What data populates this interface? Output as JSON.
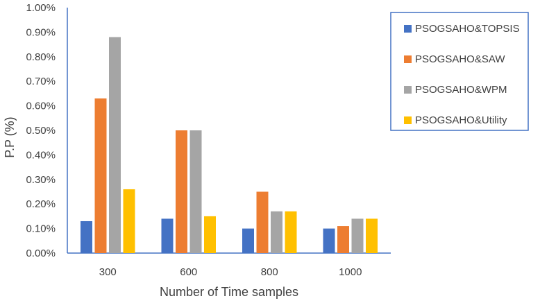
{
  "chart_data": {
    "type": "bar",
    "title": "",
    "xlabel": "Number of Time samples",
    "ylabel": "P.P (%)",
    "categories": [
      "300",
      "600",
      "800",
      "1000"
    ],
    "ylim": [
      0,
      1.0
    ],
    "yticks": [
      "0.00%",
      "0.10%",
      "0.20%",
      "0.30%",
      "0.40%",
      "0.50%",
      "0.60%",
      "0.70%",
      "0.80%",
      "0.90%",
      "1.00%"
    ],
    "grid": false,
    "legend_position": "right",
    "series": [
      {
        "name": "PSOGSAHO&TOPSIS",
        "color": "#4472C4",
        "values": [
          0.13,
          0.14,
          0.1,
          0.1
        ]
      },
      {
        "name": "PSOGSAHO&SAW",
        "color": "#ED7D31",
        "values": [
          0.63,
          0.5,
          0.25,
          0.11
        ]
      },
      {
        "name": "PSOGSAHO&WPM",
        "color": "#A5A5A5",
        "values": [
          0.88,
          0.5,
          0.17,
          0.14
        ]
      },
      {
        "name": "PSOGSAHO&Utility",
        "color": "#FFC000",
        "values": [
          0.26,
          0.15,
          0.17,
          0.14
        ]
      }
    ]
  }
}
